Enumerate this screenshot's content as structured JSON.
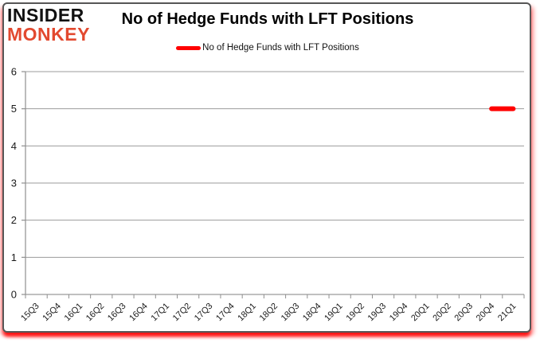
{
  "page": {
    "logo": {
      "line1": "INSIDER",
      "line2": "MONKEY"
    },
    "title": "No of Hedge Funds with LFT Positions",
    "legend": {
      "label": "No of Hedge Funds with LFT Positions"
    }
  },
  "colors": {
    "logo_text": "#111111",
    "logo_accent": "#e2492f",
    "series": "#ff0000",
    "gridline": "#9b9b9b",
    "axis": "#8f8f8f",
    "tick_label": "#1a1a1a",
    "card_border": "#565656"
  },
  "chart_data": {
    "type": "line",
    "title": "No of Hedge Funds with LFT Positions",
    "categories": [
      "15Q3",
      "15Q4",
      "16Q1",
      "16Q2",
      "16Q3",
      "16Q4",
      "17Q1",
      "17Q2",
      "17Q3",
      "17Q4",
      "18Q1",
      "18Q2",
      "18Q3",
      "18Q4",
      "19Q1",
      "19Q2",
      "19Q3",
      "19Q4",
      "20Q1",
      "20Q2",
      "20Q3",
      "20Q4",
      "21Q1"
    ],
    "series": [
      {
        "name": "No of Hedge Funds with LFT Positions",
        "color": "#ff0000",
        "values": [
          null,
          null,
          null,
          null,
          null,
          null,
          null,
          null,
          null,
          null,
          null,
          null,
          null,
          null,
          null,
          null,
          null,
          null,
          null,
          null,
          null,
          5,
          5
        ]
      }
    ],
    "ylim": [
      0,
      6
    ],
    "ytick_interval": 1,
    "xlabel": "",
    "ylabel": "",
    "grid": true,
    "legend_position": "top-center"
  }
}
